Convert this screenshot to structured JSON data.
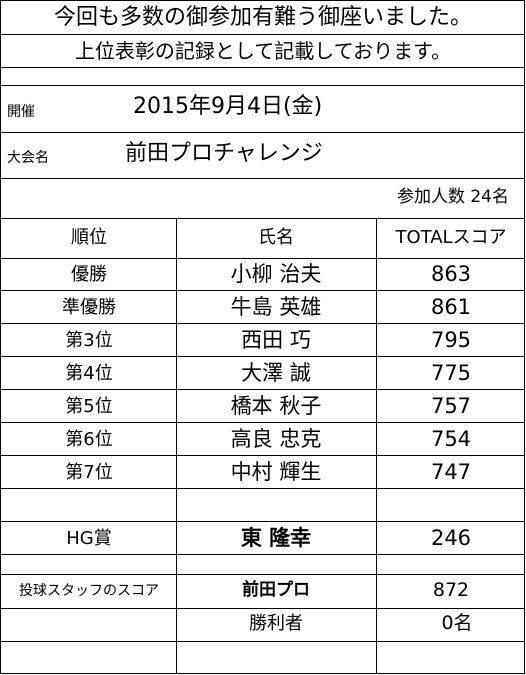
{
  "header": {
    "line1": "今回も多数の御参加有難う御座いました。",
    "line2": "上位表彰の記録として記載しております。"
  },
  "event": {
    "date_label": "開催",
    "date_value": "2015年9月4日(金)",
    "name_label": "大会名",
    "name_value": "前田プロチャレンジ",
    "participants": "参加人数 24名"
  },
  "table": {
    "columns": [
      "順位",
      "氏名",
      "TOTALスコア"
    ],
    "rows": [
      {
        "rank": "優勝",
        "name": "小柳 治夫",
        "score": "863"
      },
      {
        "rank": "準優勝",
        "name": "牛島 英雄",
        "score": "861"
      },
      {
        "rank": "第3位",
        "name": "西田 巧",
        "score": "795"
      },
      {
        "rank": "第4位",
        "name": "大澤 誠",
        "score": "775"
      },
      {
        "rank": "第5位",
        "name": "橋本 秋子",
        "score": "757"
      },
      {
        "rank": "第6位",
        "name": "高良 忠克",
        "score": "754"
      },
      {
        "rank": "第7位",
        "name": "中村 輝生",
        "score": "747"
      }
    ],
    "hg": {
      "label": "HG賞",
      "name": "東 隆幸",
      "score": "246"
    },
    "staff": {
      "label": "投球スタッフのスコア",
      "name": "前田プロ",
      "score": "872"
    },
    "winners": {
      "label": "勝利者",
      "value": "0名"
    }
  }
}
